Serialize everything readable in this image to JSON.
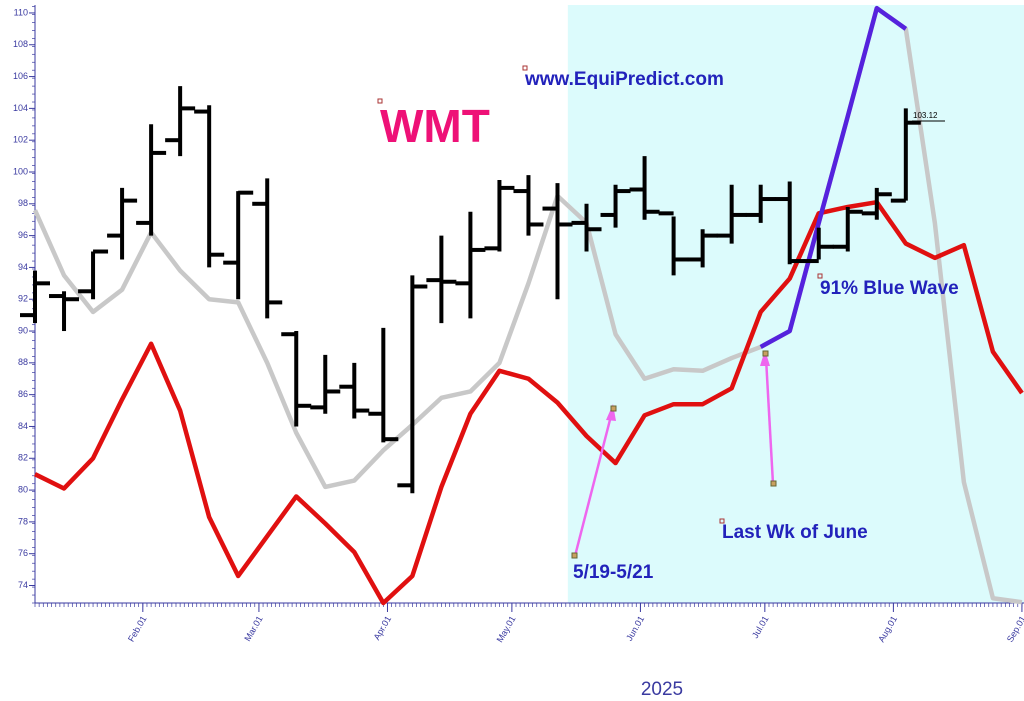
{
  "chart_data": {
    "type": "ohlc",
    "title": "WMT",
    "subtitle": "www.EquiPredict.com",
    "x_label": "2025",
    "annotations": [
      "91% Blue Wave",
      "Last Wk of June",
      "5/19-5/21",
      "103.12"
    ],
    "xlim": [
      5,
      243.5
    ],
    "ylim": [
      72.9,
      110.5
    ],
    "highlight_range": [
      133.5,
      243.5
    ],
    "highlight_color": "#dcfbfc",
    "xticks": [
      {
        "value": 31,
        "label": "Feb.01"
      },
      {
        "value": 59,
        "label": "Mar.01"
      },
      {
        "value": 90,
        "label": "Apr.01"
      },
      {
        "value": 120,
        "label": "May.01"
      },
      {
        "value": 151,
        "label": "Jun.01"
      },
      {
        "value": 181,
        "label": "Jul.01"
      },
      {
        "value": 212,
        "label": "Aug.01"
      },
      {
        "value": 243,
        "label": "Sep.01"
      }
    ],
    "yticks": [
      74,
      76,
      78,
      80,
      82,
      84,
      86,
      88,
      90,
      92,
      94,
      96,
      98,
      100,
      102,
      104,
      106,
      108,
      110
    ],
    "ohlc": {
      "color": "#000000",
      "x": [
        5,
        12,
        19,
        26,
        33,
        40,
        47,
        54,
        61,
        68,
        75,
        82,
        89,
        96,
        103,
        110,
        117,
        124,
        131,
        138,
        145,
        152,
        159,
        166,
        173,
        180,
        187,
        194,
        201,
        208,
        215
      ],
      "open": [
        91,
        92.2,
        92.5,
        96,
        96.8,
        102,
        103.8,
        94.3,
        98,
        89.8,
        85.2,
        86.5,
        84.8,
        80.3,
        93.2,
        93,
        95.2,
        98.8,
        97.7,
        96.8,
        97.3,
        98.9,
        97.4,
        94.5,
        96,
        97.3,
        98.3,
        94.4,
        95.3,
        97.4,
        98.2
      ],
      "high": [
        93.8,
        92.5,
        95,
        99,
        103,
        105.4,
        104.2,
        98.8,
        99.6,
        90,
        88.5,
        88,
        90.2,
        93.5,
        96,
        97.5,
        99.5,
        99.8,
        99.3,
        98,
        99.2,
        101,
        97.2,
        96.4,
        99.2,
        99.2,
        99.4,
        96.5,
        97.8,
        99,
        104
      ],
      "low": [
        90.5,
        90,
        92,
        94.5,
        96,
        101,
        94,
        92,
        90.8,
        84,
        84.8,
        84.5,
        83,
        79.8,
        90.5,
        90.8,
        95,
        96,
        92,
        95,
        96.5,
        97,
        93.5,
        94,
        95.5,
        96.8,
        94.2,
        94.5,
        95,
        97,
        98.2
      ],
      "close": [
        93,
        92,
        95,
        98.2,
        101.2,
        104,
        94.8,
        98.7,
        91.8,
        85.3,
        86.2,
        85,
        83.2,
        92.8,
        93.1,
        95.1,
        99,
        96.7,
        96.7,
        96.4,
        98.8,
        97.5,
        94.5,
        96,
        97.3,
        98.3,
        94.4,
        95.3,
        97.5,
        98.6,
        103.1
      ]
    },
    "lines": {
      "x": [
        5,
        12,
        19,
        26,
        33,
        40,
        47,
        54,
        61,
        68,
        75,
        82,
        89,
        96,
        103,
        110,
        117,
        124,
        131,
        138,
        145,
        152,
        159,
        166,
        173,
        180,
        187,
        194,
        201,
        208,
        215,
        222,
        229,
        236,
        243
      ],
      "series": [
        {
          "color": "#c8c8c8",
          "values": [
            97.6,
            93.5,
            91.2,
            92.6,
            96.2,
            93.8,
            92,
            91.8,
            88,
            83.6,
            80.2,
            80.6,
            82.5,
            84.1,
            85.8,
            86.2,
            88,
            93,
            98.5,
            96.8,
            89.8,
            87,
            87.6,
            87.5,
            88.3,
            89,
            90,
            96.8,
            103.5,
            110.3,
            109,
            96.8,
            80.5,
            73.2,
            72.95
          ]
        },
        {
          "color": "#e01010",
          "values": [
            81,
            80.1,
            82,
            85.7,
            89.2,
            85,
            78.3,
            74.6,
            77.1,
            79.6,
            77.9,
            76.1,
            72.9,
            74.6,
            80.2,
            84.8,
            87.5,
            87,
            85.5,
            83.4,
            81.7,
            84.7,
            85.4,
            85.4,
            86.4,
            91.2,
            93.3,
            97.4,
            97.8,
            98.1,
            95.5,
            94.6,
            95.4,
            88.7,
            86.1
          ]
        },
        {
          "color": "#5522dd",
          "values": [
            null,
            null,
            null,
            null,
            null,
            null,
            null,
            null,
            null,
            null,
            null,
            null,
            null,
            null,
            null,
            null,
            null,
            null,
            null,
            null,
            null,
            null,
            null,
            null,
            null,
            89,
            90,
            96.8,
            103.5,
            110.3,
            109,
            null,
            null,
            null,
            null
          ]
        }
      ]
    }
  }
}
